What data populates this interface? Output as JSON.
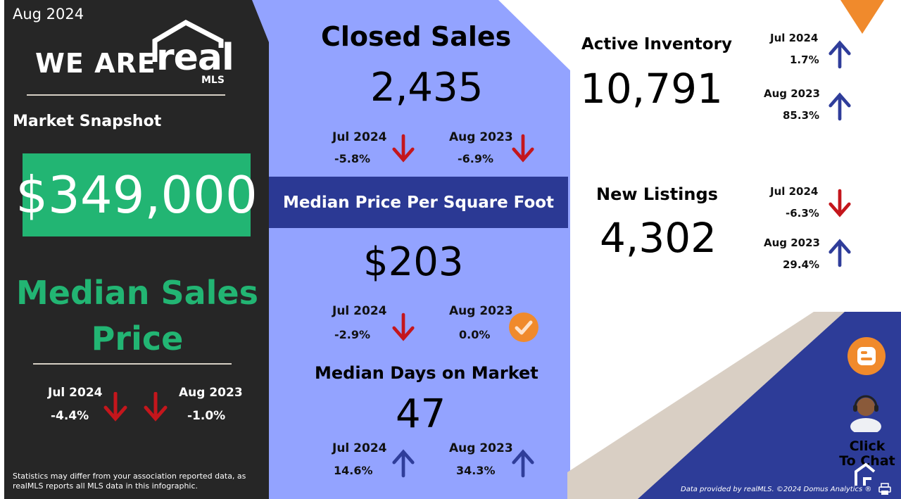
{
  "period": "Aug 2024",
  "brand": {
    "we_are": "WE ARE",
    "real": "real",
    "mls": "MLS"
  },
  "market_snapshot": "Market Snapshot",
  "median_sales_price": {
    "value": "$349,000",
    "title": "Median Sales Price",
    "comparisons": [
      {
        "label": "Jul 2024",
        "pct": "-4.4%",
        "direction": "down"
      },
      {
        "label": "Aug 2023",
        "pct": "-1.0%",
        "direction": "down"
      }
    ]
  },
  "closed_sales": {
    "title": "Closed Sales",
    "value": "2,435",
    "comparisons": [
      {
        "label": "Jul 2024",
        "pct": "-5.8%",
        "direction": "down"
      },
      {
        "label": "Aug 2023",
        "pct": "-6.9%",
        "direction": "down"
      }
    ]
  },
  "price_per_sqft": {
    "title": "Median Price Per Square Foot",
    "value": "$203",
    "comparisons": [
      {
        "label": "Jul 2024",
        "pct": "-2.9%",
        "direction": "down"
      },
      {
        "label": "Aug 2023",
        "pct": "0.0%",
        "direction": "flat"
      }
    ]
  },
  "days_on_market": {
    "title": "Median Days on Market",
    "value": "47",
    "comparisons": [
      {
        "label": "Jul 2024",
        "pct": "14.6%",
        "direction": "up"
      },
      {
        "label": "Aug 2023",
        "pct": "34.3%",
        "direction": "up"
      }
    ]
  },
  "active_inventory": {
    "title": "Active Inventory",
    "value": "10,791",
    "comparisons": [
      {
        "label": "Jul 2024",
        "pct": "1.7%",
        "direction": "up"
      },
      {
        "label": "Aug 2023",
        "pct": "85.3%",
        "direction": "up"
      }
    ]
  },
  "new_listings": {
    "title": "New Listings",
    "value": "4,302",
    "comparisons": [
      {
        "label": "Jul 2024",
        "pct": "-6.3%",
        "direction": "down"
      },
      {
        "label": "Aug 2023",
        "pct": "29.4%",
        "direction": "up"
      }
    ]
  },
  "disclaimer": "Statistics may differ from your association reported data,  as realMLS reports all MLS data in this infographic.",
  "footer": "Data provided by realMLS. ©2024 Domus Analytics ®",
  "chat": {
    "label": "Click To Chat"
  },
  "icons": {
    "down": "arrow-down-icon",
    "up": "arrow-up-icon",
    "flat": "checkmark-icon",
    "blog": "blogger-icon",
    "agent": "support-agent-icon",
    "print": "print-icon"
  },
  "colors": {
    "panel_dark": "#262626",
    "accent_green": "#22b573",
    "mid_blue": "#93a3ff",
    "band_navy": "#2b3994",
    "arrow_red": "#c4161c",
    "arrow_blue": "#2f3d9a",
    "orange": "#f08a2c",
    "taupe": "#d9cfc4"
  }
}
